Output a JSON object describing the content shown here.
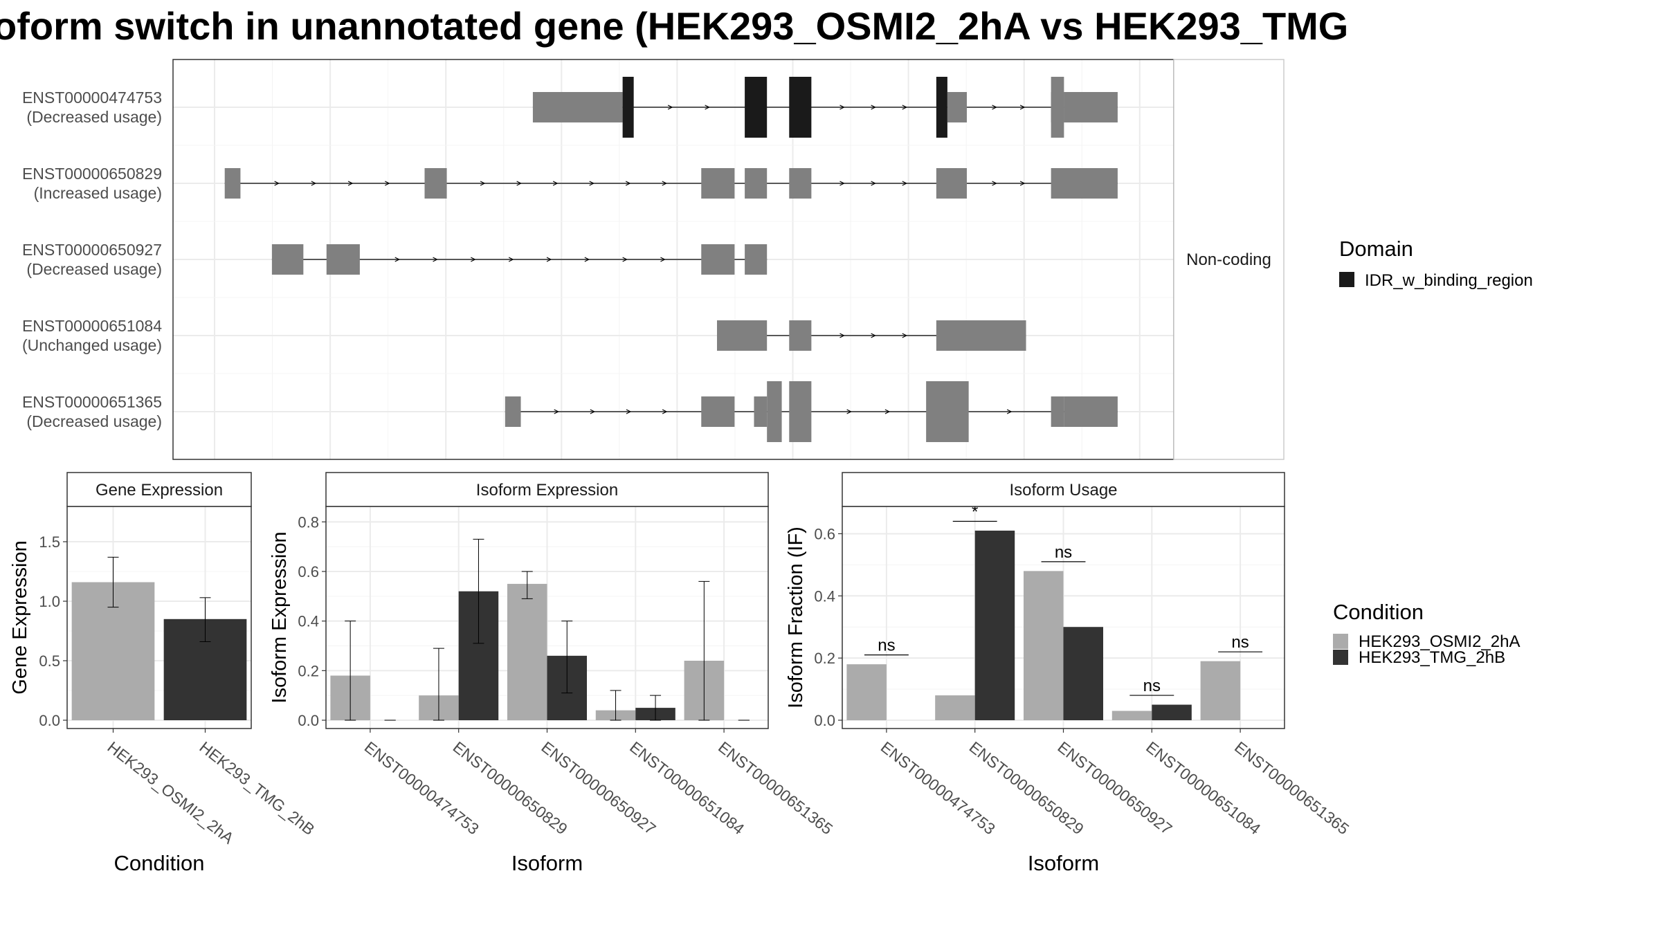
{
  "title": "oform switch in unannotated gene (HEK293_OSMI2_2hA vs HEK293_TMG",
  "colors": {
    "domain": "#1a1a1a",
    "exon": "#808080",
    "cond_a": "#ababab",
    "cond_b": "#333333",
    "grid": "#ebebeb",
    "panel_border": "#333333",
    "strip_fill": "#ffffff",
    "text": "#4d4d4d"
  },
  "structure": {
    "strip_label": "Non-coding",
    "legend_title": "Domain",
    "legend_items": [
      "IDR_w_binding_region"
    ],
    "transcripts": [
      {
        "id": "ENST00000474753",
        "usage": "(Decreased usage)",
        "exons": [
          [
            0.344,
            0.441,
            "thin"
          ],
          [
            0.441,
            0.453,
            "dom"
          ],
          [
            0.573,
            0.597,
            "dom"
          ],
          [
            0.621,
            0.645,
            "dom"
          ],
          [
            0.78,
            0.792,
            "dom"
          ],
          [
            0.792,
            0.813,
            "thin"
          ],
          [
            0.904,
            0.918,
            "thin"
          ],
          [
            0.918,
            0.976,
            "thin"
          ]
        ],
        "utr_extra": [
          [
            0.904,
            0.918
          ]
        ]
      },
      {
        "id": "ENST00000650829",
        "usage": "(Increased usage)",
        "exons": [
          [
            0.011,
            0.028,
            "thin"
          ],
          [
            0.227,
            0.251,
            "thin"
          ],
          [
            0.526,
            0.562,
            "thin"
          ],
          [
            0.573,
            0.597,
            "thin"
          ],
          [
            0.621,
            0.645,
            "thin"
          ],
          [
            0.78,
            0.813,
            "thin"
          ],
          [
            0.904,
            0.976,
            "thin"
          ]
        ]
      },
      {
        "id": "ENST00000650927",
        "usage": "(Decreased usage)",
        "exons": [
          [
            0.062,
            0.096,
            "thin"
          ],
          [
            0.121,
            0.157,
            "thin"
          ],
          [
            0.526,
            0.562,
            "thin"
          ],
          [
            0.573,
            0.597,
            "thin"
          ]
        ]
      },
      {
        "id": "ENST00000651084",
        "usage": "(Unchanged usage)",
        "exons": [
          [
            0.543,
            0.597,
            "thin"
          ],
          [
            0.621,
            0.645,
            "thin"
          ],
          [
            0.78,
            0.877,
            "thin"
          ]
        ]
      },
      {
        "id": "ENST00000651365",
        "usage": "(Decreased usage)",
        "exons": [
          [
            0.314,
            0.331,
            "thin"
          ],
          [
            0.526,
            0.562,
            "thin"
          ],
          [
            0.583,
            0.597,
            "thin"
          ],
          [
            0.597,
            0.613,
            "thick"
          ],
          [
            0.621,
            0.645,
            "thick"
          ],
          [
            0.769,
            0.815,
            "thick"
          ],
          [
            0.904,
            0.918,
            "thin"
          ],
          [
            0.918,
            0.976,
            "thin"
          ]
        ]
      }
    ]
  },
  "chart_data": [
    {
      "type": "bar",
      "strip": "Gene Expression",
      "ylabel": "Gene Expression",
      "xlabel": "Condition",
      "ylim": [
        0,
        1.75
      ],
      "yticks": [
        "0.0",
        "0.5",
        "1.0",
        "1.5"
      ],
      "categories": [
        "HEK293_OSMI2_2hA",
        "HEK293_TMG_2hB"
      ],
      "values": [
        1.16,
        0.85
      ],
      "error_low": [
        0.95,
        0.66
      ],
      "error_high": [
        1.37,
        1.03
      ]
    },
    {
      "type": "bar",
      "strip": "Isoform Expression",
      "ylabel": "Isoform Expression",
      "xlabel": "Isoform",
      "ylim": [
        0,
        0.84
      ],
      "yticks": [
        "0.0",
        "0.2",
        "0.4",
        "0.6",
        "0.8"
      ],
      "categories": [
        "ENST00000474753",
        "ENST00000650829",
        "ENST00000650927",
        "ENST00000651084",
        "ENST00000651365"
      ],
      "series": [
        {
          "name": "HEK293_OSMI2_2hA",
          "values": [
            0.18,
            0.1,
            0.55,
            0.04,
            0.24
          ],
          "error_low": [
            0.0,
            0.0,
            0.49,
            0.0,
            0.0
          ],
          "error_high": [
            0.4,
            0.29,
            0.6,
            0.12,
            0.56
          ]
        },
        {
          "name": "HEK293_TMG_2hB",
          "values": [
            0.0,
            0.52,
            0.26,
            0.05,
            0.0
          ],
          "error_low": [
            0.0,
            0.31,
            0.11,
            0.0,
            0.0
          ],
          "error_high": [
            0.0,
            0.73,
            0.4,
            0.1,
            0.0
          ]
        }
      ]
    },
    {
      "type": "bar",
      "strip": "Isoform Usage",
      "ylabel": "Isoform Fraction (IF)",
      "xlabel": "Isoform",
      "ylim": [
        0,
        0.67
      ],
      "yticks": [
        "0.0",
        "0.2",
        "0.4",
        "0.6"
      ],
      "categories": [
        "ENST00000474753",
        "ENST00000650829",
        "ENST00000650927",
        "ENST00000651084",
        "ENST00000651365"
      ],
      "series": [
        {
          "name": "HEK293_OSMI2_2hA",
          "values": [
            0.18,
            0.08,
            0.48,
            0.03,
            0.19
          ]
        },
        {
          "name": "HEK293_TMG_2hB",
          "values": [
            0.0,
            0.61,
            0.3,
            0.05,
            0.0
          ]
        }
      ],
      "significance": [
        "ns",
        "*",
        "ns",
        "ns",
        "ns"
      ],
      "sig_level": [
        0.21,
        0.64,
        0.51,
        0.08,
        0.22
      ]
    }
  ],
  "condition_legend": {
    "title": "Condition",
    "items": [
      "HEK293_OSMI2_2hA",
      "HEK293_TMG_2hB"
    ]
  }
}
